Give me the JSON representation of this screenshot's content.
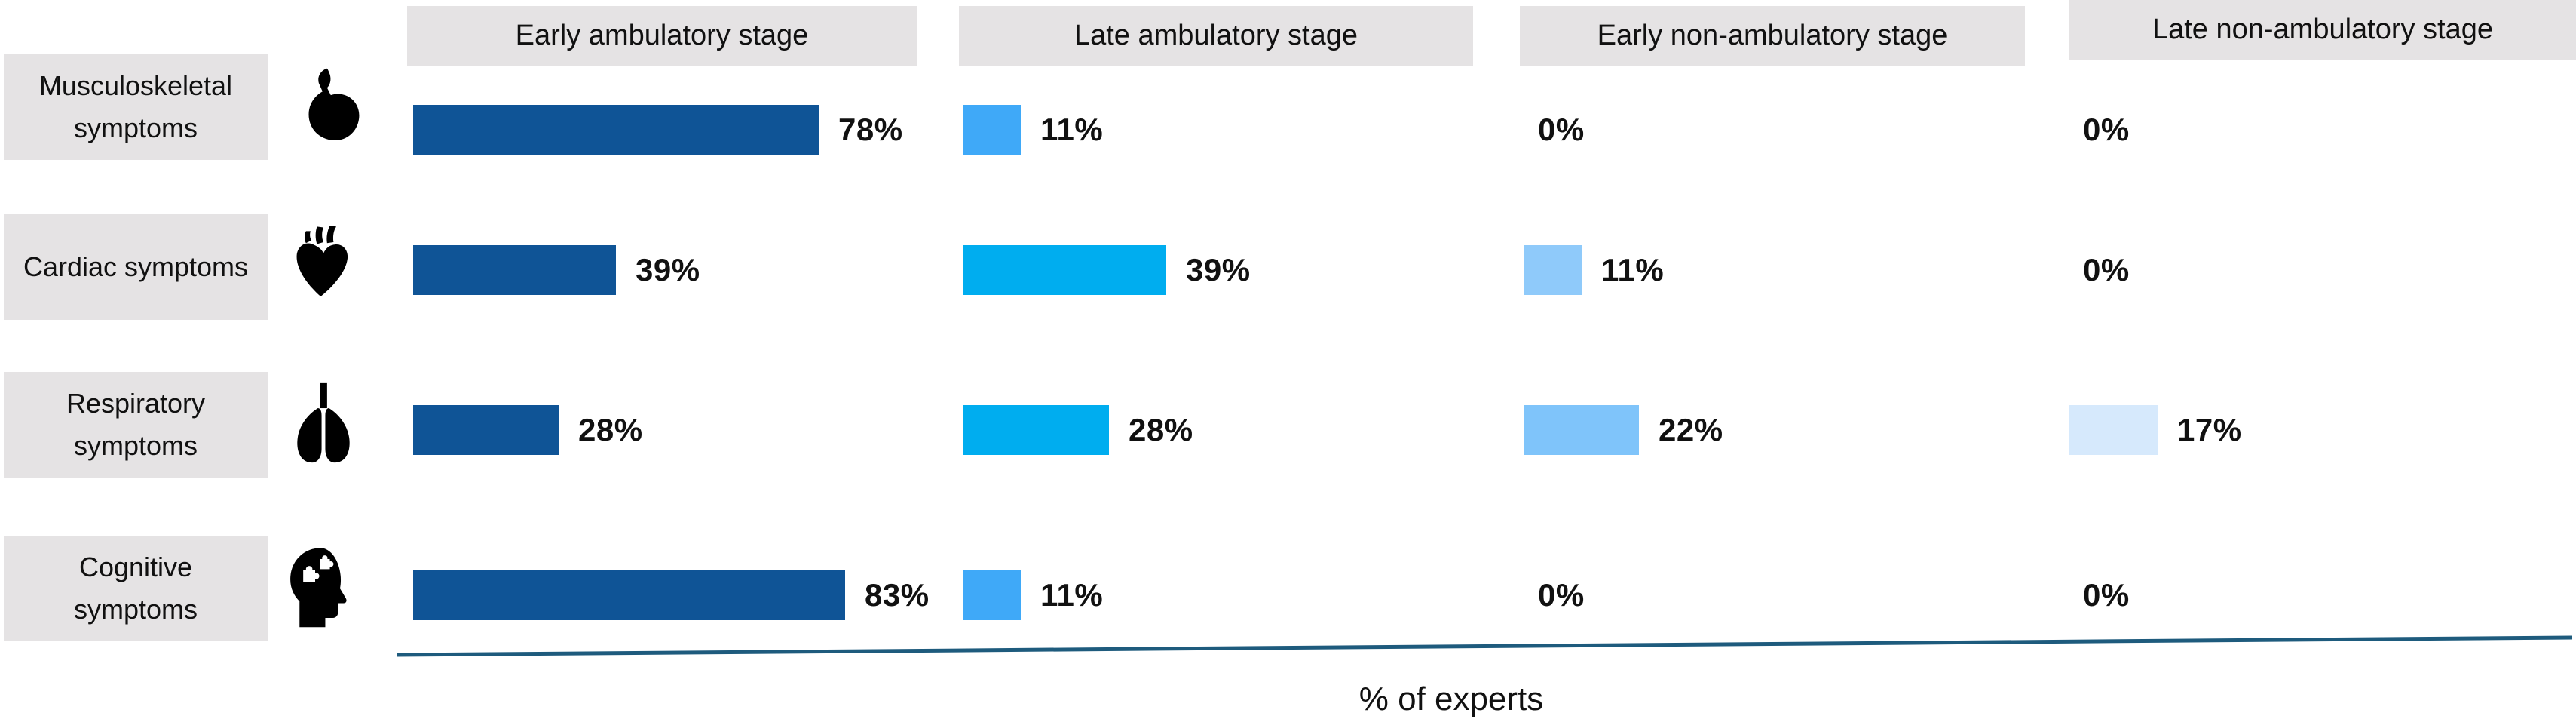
{
  "chart_data": {
    "type": "bar",
    "orientation": "horizontal",
    "title": "",
    "xlabel": "% of experts",
    "value_suffix": "%",
    "xlim": [
      0,
      100
    ],
    "grid": false,
    "legend_position": "none",
    "categories": [
      "Musculoskeletal symptoms",
      "Cardiac symptoms",
      "Respiratory symptoms",
      "Cognitive symptoms"
    ],
    "category_icons": [
      "muscle-icon",
      "heart-icon",
      "lungs-icon",
      "cognitive-head-icon"
    ],
    "series": [
      {
        "name": "Early ambulatory stage",
        "values": [
          78,
          39,
          28,
          83
        ]
      },
      {
        "name": "Late ambulatory stage",
        "values": [
          11,
          39,
          28,
          11
        ]
      },
      {
        "name": "Early non-ambulatory stage",
        "values": [
          0,
          11,
          22,
          0
        ]
      },
      {
        "name": "Late non-ambulatory stage",
        "values": [
          0,
          0,
          17,
          0
        ]
      }
    ],
    "bar_colors": [
      [
        "#0F5496",
        "#3FA9F8",
        null,
        null
      ],
      [
        "#0F5496",
        "#00ADEF",
        "#8FCAFA",
        null
      ],
      [
        "#0F5496",
        "#00ADEF",
        "#7FC4FA",
        "#D6E9FC"
      ],
      [
        "#0F5496",
        "#3FA9F8",
        null,
        null
      ]
    ]
  },
  "styles": {
    "header_background": "#E5E3E4",
    "row_label_background": "#E5E3E4",
    "icon_color": "#000000",
    "axis_line_color": "#1E5B7D",
    "text_color": "#111111"
  }
}
